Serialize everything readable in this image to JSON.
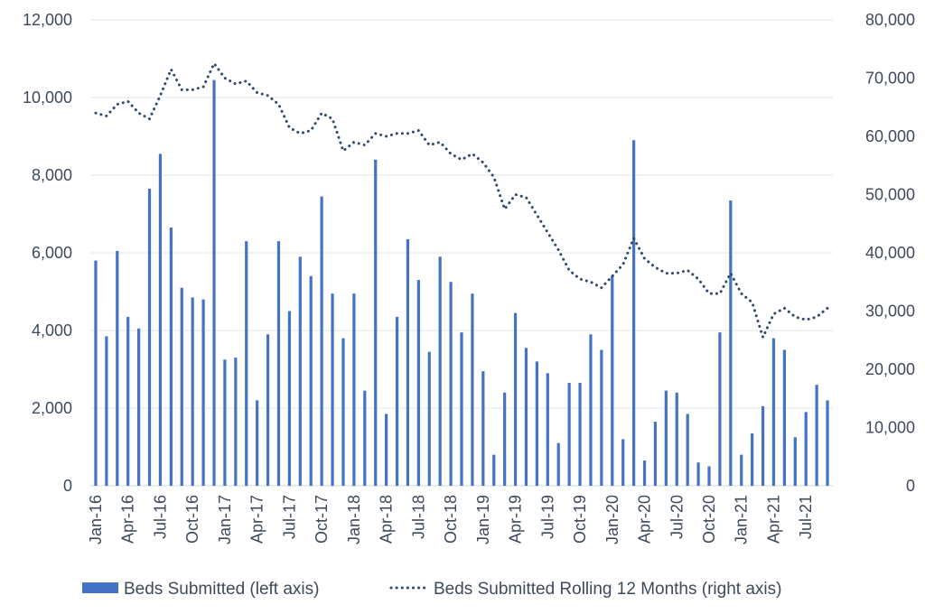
{
  "chart_data": {
    "type": "bar+line",
    "title": "",
    "x_tick_labels": [
      "Jan-16",
      "Apr-16",
      "Jul-16",
      "Oct-16",
      "Jan-17",
      "Apr-17",
      "Jul-17",
      "Oct-17",
      "Jan-18",
      "Apr-18",
      "Jul-18",
      "Oct-18",
      "Jan-19",
      "Apr-19",
      "Jul-19",
      "Oct-19",
      "Jan-20",
      "Apr-20",
      "Jul-20",
      "Oct-20",
      "Jan-21",
      "Apr-21",
      "Jul-21"
    ],
    "left_axis": {
      "min": 0,
      "max": 12000,
      "ticks": [
        "0",
        "2,000",
        "4,000",
        "6,000",
        "8,000",
        "10,000",
        "12,000"
      ]
    },
    "right_axis": {
      "min": 0,
      "max": 80000,
      "ticks": [
        "0",
        "10,000",
        "20,000",
        "30,000",
        "40,000",
        "50,000",
        "60,000",
        "70,000",
        "80,000"
      ]
    },
    "colors": {
      "bar": "#4472c4",
      "line": "#2f4a6b"
    },
    "series": [
      {
        "name": "Beds Submitted (left axis)",
        "axis": "left",
        "kind": "bar",
        "values": [
          5800,
          3850,
          6050,
          4350,
          4050,
          7650,
          8550,
          6650,
          5100,
          4850,
          4800,
          10450,
          3250,
          3300,
          6300,
          2200,
          3900,
          6300,
          4500,
          5900,
          5400,
          7450,
          4950,
          3800,
          4950,
          2450,
          8400,
          1850,
          4350,
          6350,
          5300,
          3450,
          5900,
          5250,
          3950,
          4950,
          2950,
          800,
          2400,
          4450,
          3550,
          3200,
          2900,
          1100,
          2650,
          2650,
          3900,
          3500,
          5400,
          1200,
          8900,
          650,
          1650,
          2450,
          2400,
          1850,
          600,
          500,
          3950,
          7350,
          800,
          1350,
          2050,
          3800,
          3500,
          1250,
          1900,
          2600,
          2200
        ]
      },
      {
        "name": "Beds Submitted Rolling 12 Months (right axis)",
        "axis": "right",
        "kind": "dotted-line",
        "values": [
          64000,
          63500,
          65500,
          66000,
          64000,
          63000,
          67000,
          71500,
          68000,
          68000,
          68500,
          72500,
          70000,
          69000,
          69500,
          67500,
          67000,
          65500,
          61500,
          60500,
          61000,
          64000,
          63000,
          57500,
          59000,
          58500,
          60500,
          60000,
          60500,
          60500,
          61000,
          58500,
          59000,
          57000,
          56000,
          57000,
          55500,
          53000,
          47500,
          50000,
          49500,
          46500,
          43500,
          40500,
          37000,
          35500,
          35000,
          34000,
          36000,
          38000,
          42500,
          39000,
          37500,
          36500,
          36500,
          37000,
          35500,
          33000,
          33000,
          36500,
          33000,
          31500,
          25500,
          29500,
          30500,
          29000,
          28500,
          29000,
          30500
        ]
      }
    ]
  },
  "legend": {
    "bar_label": "Beds Submitted (left axis)",
    "line_label": "Beds Submitted Rolling 12 Months (right axis)"
  }
}
